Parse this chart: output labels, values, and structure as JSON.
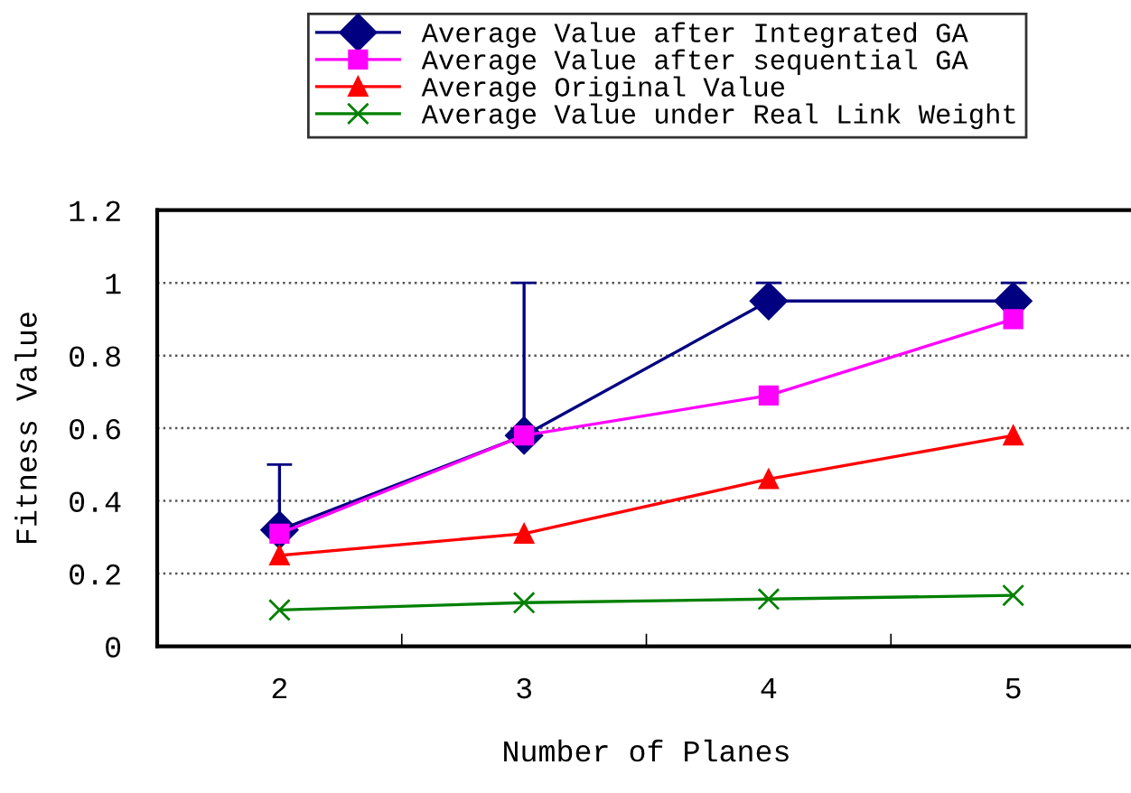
{
  "chart_data": {
    "type": "line",
    "xlabel": "Number of Planes",
    "ylabel": "Fitness Value",
    "categories": [
      "2",
      "3",
      "4",
      "5"
    ],
    "series": [
      {
        "name": "Average Value after Integrated GA",
        "color": "#000080",
        "marker": "diamond",
        "values": [
          0.32,
          0.58,
          0.95,
          0.95
        ],
        "errors": [
          [
            0.32,
            0.5
          ],
          [
            0.58,
            1.0
          ],
          [
            0.95,
            1.0
          ],
          [
            0.95,
            1.0
          ]
        ]
      },
      {
        "name": "Average Value after sequential GA",
        "color": "#ff00ff",
        "marker": "square",
        "values": [
          0.31,
          0.58,
          0.69,
          0.9
        ]
      },
      {
        "name": "Average Original Value",
        "color": "#ff0000",
        "marker": "triangle",
        "values": [
          0.25,
          0.31,
          0.46,
          0.58
        ]
      },
      {
        "name": "Average Value under Real Link Weight",
        "color": "#008000",
        "marker": "cross",
        "values": [
          0.1,
          0.12,
          0.13,
          0.14
        ]
      }
    ],
    "ylim": [
      0,
      1.2
    ],
    "yticks": [
      0,
      0.2,
      0.4,
      0.6,
      0.8,
      1,
      1.2
    ],
    "grid": "y",
    "legend": "top",
    "line_style": "solid"
  }
}
